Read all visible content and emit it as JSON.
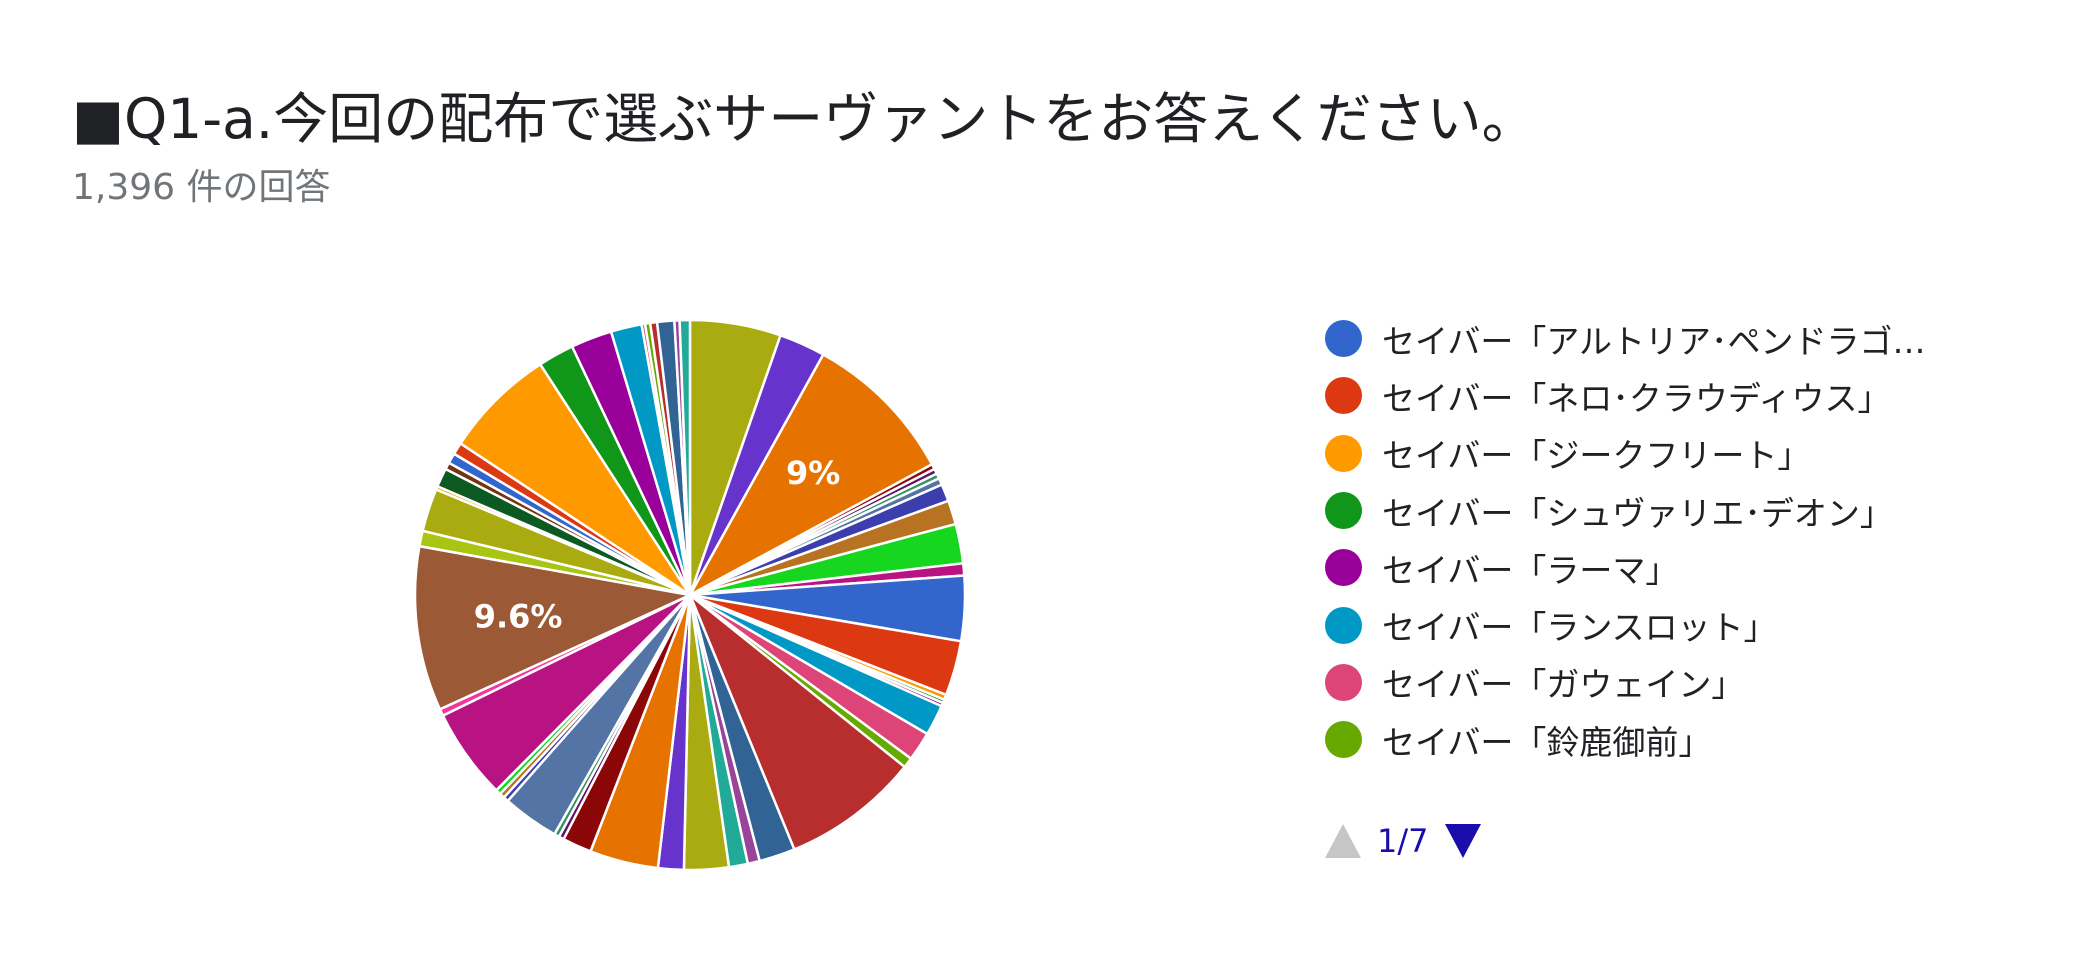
{
  "title": "■Q1-a.今回の配布で選ぶサーヴァントをお答えください。",
  "response_count": "1,396 件の回答",
  "legend": {
    "items": [
      {
        "label": "セイバー「アルトリア･ペンドラゴ…",
        "color": "#3366cc"
      },
      {
        "label": "セイバー「ネロ･クラウディウス」",
        "color": "#dc3912"
      },
      {
        "label": "セイバー「ジークフリート」",
        "color": "#ff9900"
      },
      {
        "label": "セイバー「シュヴァリエ･デオン」",
        "color": "#109618"
      },
      {
        "label": "セイバー「ラーマ」",
        "color": "#990099"
      },
      {
        "label": "セイバー「ランスロット」",
        "color": "#0099c6"
      },
      {
        "label": "セイバー「ガウェイン」",
        "color": "#dd4477"
      },
      {
        "label": "セイバー「鈴鹿御前」",
        "color": "#66aa00"
      }
    ],
    "page": "1/7",
    "prev_icon": "triangle-up-icon",
    "next_icon": "triangle-down-icon"
  },
  "chart_data": {
    "type": "pie",
    "title": "■Q1-a.今回の配布で選ぶサーヴァントをお答えください。",
    "total_responses": 1396,
    "start_angle_deg": 0,
    "slices_clockwise_from_top": [
      {
        "value": 5.3,
        "color": "#aaaa11"
      },
      {
        "value": 2.7,
        "color": "#6633cc"
      },
      {
        "value": 9.0,
        "color": "#e67300",
        "label": "9%"
      },
      {
        "value": 0.3,
        "color": "#8b0707"
      },
      {
        "value": 0.3,
        "color": "#651067"
      },
      {
        "value": 0.3,
        "color": "#329262"
      },
      {
        "value": 0.4,
        "color": "#5574a6"
      },
      {
        "value": 1.0,
        "color": "#3b3eac"
      },
      {
        "value": 1.4,
        "color": "#b77322"
      },
      {
        "value": 2.3,
        "color": "#16d620"
      },
      {
        "value": 0.7,
        "color": "#b91383"
      },
      {
        "value": 3.8,
        "color": "#3366cc"
      },
      {
        "value": 3.2,
        "color": "#dc3912"
      },
      {
        "value": 0.3,
        "color": "#ff9900"
      },
      {
        "value": 0.2,
        "color": "#109618"
      },
      {
        "value": 0.2,
        "color": "#990099"
      },
      {
        "value": 1.8,
        "color": "#0099c6"
      },
      {
        "value": 1.7,
        "color": "#dd4477"
      },
      {
        "value": 0.6,
        "color": "#66aa00"
      },
      {
        "value": 8.0,
        "color": "#b82e2e"
      },
      {
        "value": 2.1,
        "color": "#316395"
      },
      {
        "value": 0.7,
        "color": "#994499"
      },
      {
        "value": 1.1,
        "color": "#22aa99"
      },
      {
        "value": 2.6,
        "color": "#aaaa11"
      },
      {
        "value": 1.5,
        "color": "#6633cc"
      },
      {
        "value": 4.0,
        "color": "#e67300"
      },
      {
        "value": 1.7,
        "color": "#8b0707"
      },
      {
        "value": 0.3,
        "color": "#651067"
      },
      {
        "value": 0.3,
        "color": "#329262"
      },
      {
        "value": 3.3,
        "color": "#5574a6"
      },
      {
        "value": 0.3,
        "color": "#3b3eac"
      },
      {
        "value": 0.3,
        "color": "#b77322"
      },
      {
        "value": 0.3,
        "color": "#16d620"
      },
      {
        "value": 5.3,
        "color": "#b91383"
      },
      {
        "value": 0.4,
        "color": "#f4359e"
      },
      {
        "value": 9.6,
        "color": "#9c5935",
        "label": "9.6%"
      },
      {
        "value": 0.9,
        "color": "#a9c413"
      },
      {
        "value": 2.5,
        "color": "#aaaa11"
      },
      {
        "value": 0.2,
        "color": "#ff9900"
      },
      {
        "value": 1.1,
        "color": "#0c5922"
      },
      {
        "value": 0.4,
        "color": "#743411"
      },
      {
        "value": 0.6,
        "color": "#3366cc"
      },
      {
        "value": 0.7,
        "color": "#dc3912"
      },
      {
        "value": 6.5,
        "color": "#ff9900"
      },
      {
        "value": 2.1,
        "color": "#109618"
      },
      {
        "value": 2.4,
        "color": "#990099"
      },
      {
        "value": 1.8,
        "color": "#0099c6"
      },
      {
        "value": 0.2,
        "color": "#dd4477"
      },
      {
        "value": 0.3,
        "color": "#66aa00"
      },
      {
        "value": 0.4,
        "color": "#b82e2e"
      },
      {
        "value": 1.0,
        "color": "#316395"
      },
      {
        "value": 0.3,
        "color": "#994499"
      },
      {
        "value": 0.6,
        "color": "#22aa99"
      }
    ]
  }
}
